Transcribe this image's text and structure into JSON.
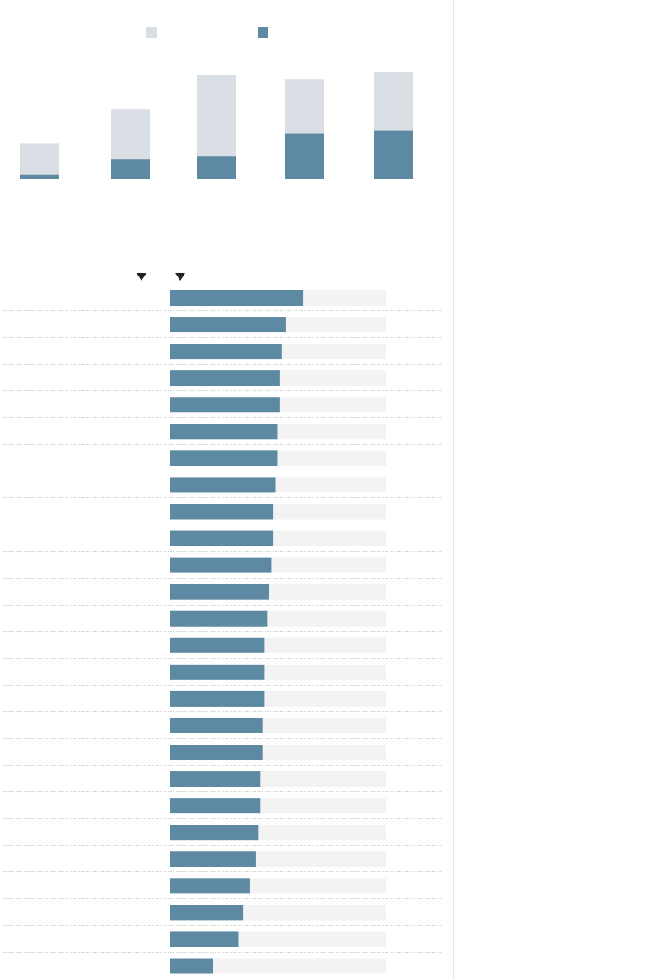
{
  "colors": {
    "accent": "#5d8aa2",
    "total_bar": "#d9dee5",
    "track": "#f3f3f3",
    "row_divider": "#cfcfcf",
    "panel_divider": "#e6e6e6",
    "arrow": "#222222"
  },
  "icons": {
    "sort_left": "triangle-down-icon",
    "sort_right": "triangle-down-icon"
  },
  "chart_data": [
    {
      "type": "bar",
      "stacked": false,
      "overlap": true,
      "categories": [
        "",
        "",
        "",
        "",
        ""
      ],
      "series": [
        {
          "values": [
            33,
            65,
            97,
            93,
            100
          ]
        },
        {
          "values": [
            4,
            18,
            21,
            42,
            45
          ]
        }
      ],
      "ylim": [
        0,
        100
      ],
      "legend_position": "top",
      "grid": false
    },
    {
      "type": "bar",
      "orientation": "horizontal",
      "categories": [
        "",
        "",
        "",
        "",
        "",
        "",
        "",
        "",
        "",
        "",
        "",
        "",
        "",
        "",
        "",
        "",
        "",
        "",
        "",
        "",
        "",
        "",
        "",
        "",
        "",
        ""
      ],
      "values": [
        61.6,
        53.7,
        51.8,
        50.7,
        50.7,
        49.8,
        49.8,
        48.7,
        47.8,
        47.8,
        46.8,
        45.9,
        44.9,
        43.8,
        43.8,
        43.8,
        42.8,
        42.8,
        41.9,
        41.9,
        40.8,
        39.9,
        36.9,
        34,
        31.9,
        20
      ],
      "xlim": [
        0,
        100
      ],
      "grid": false
    }
  ]
}
